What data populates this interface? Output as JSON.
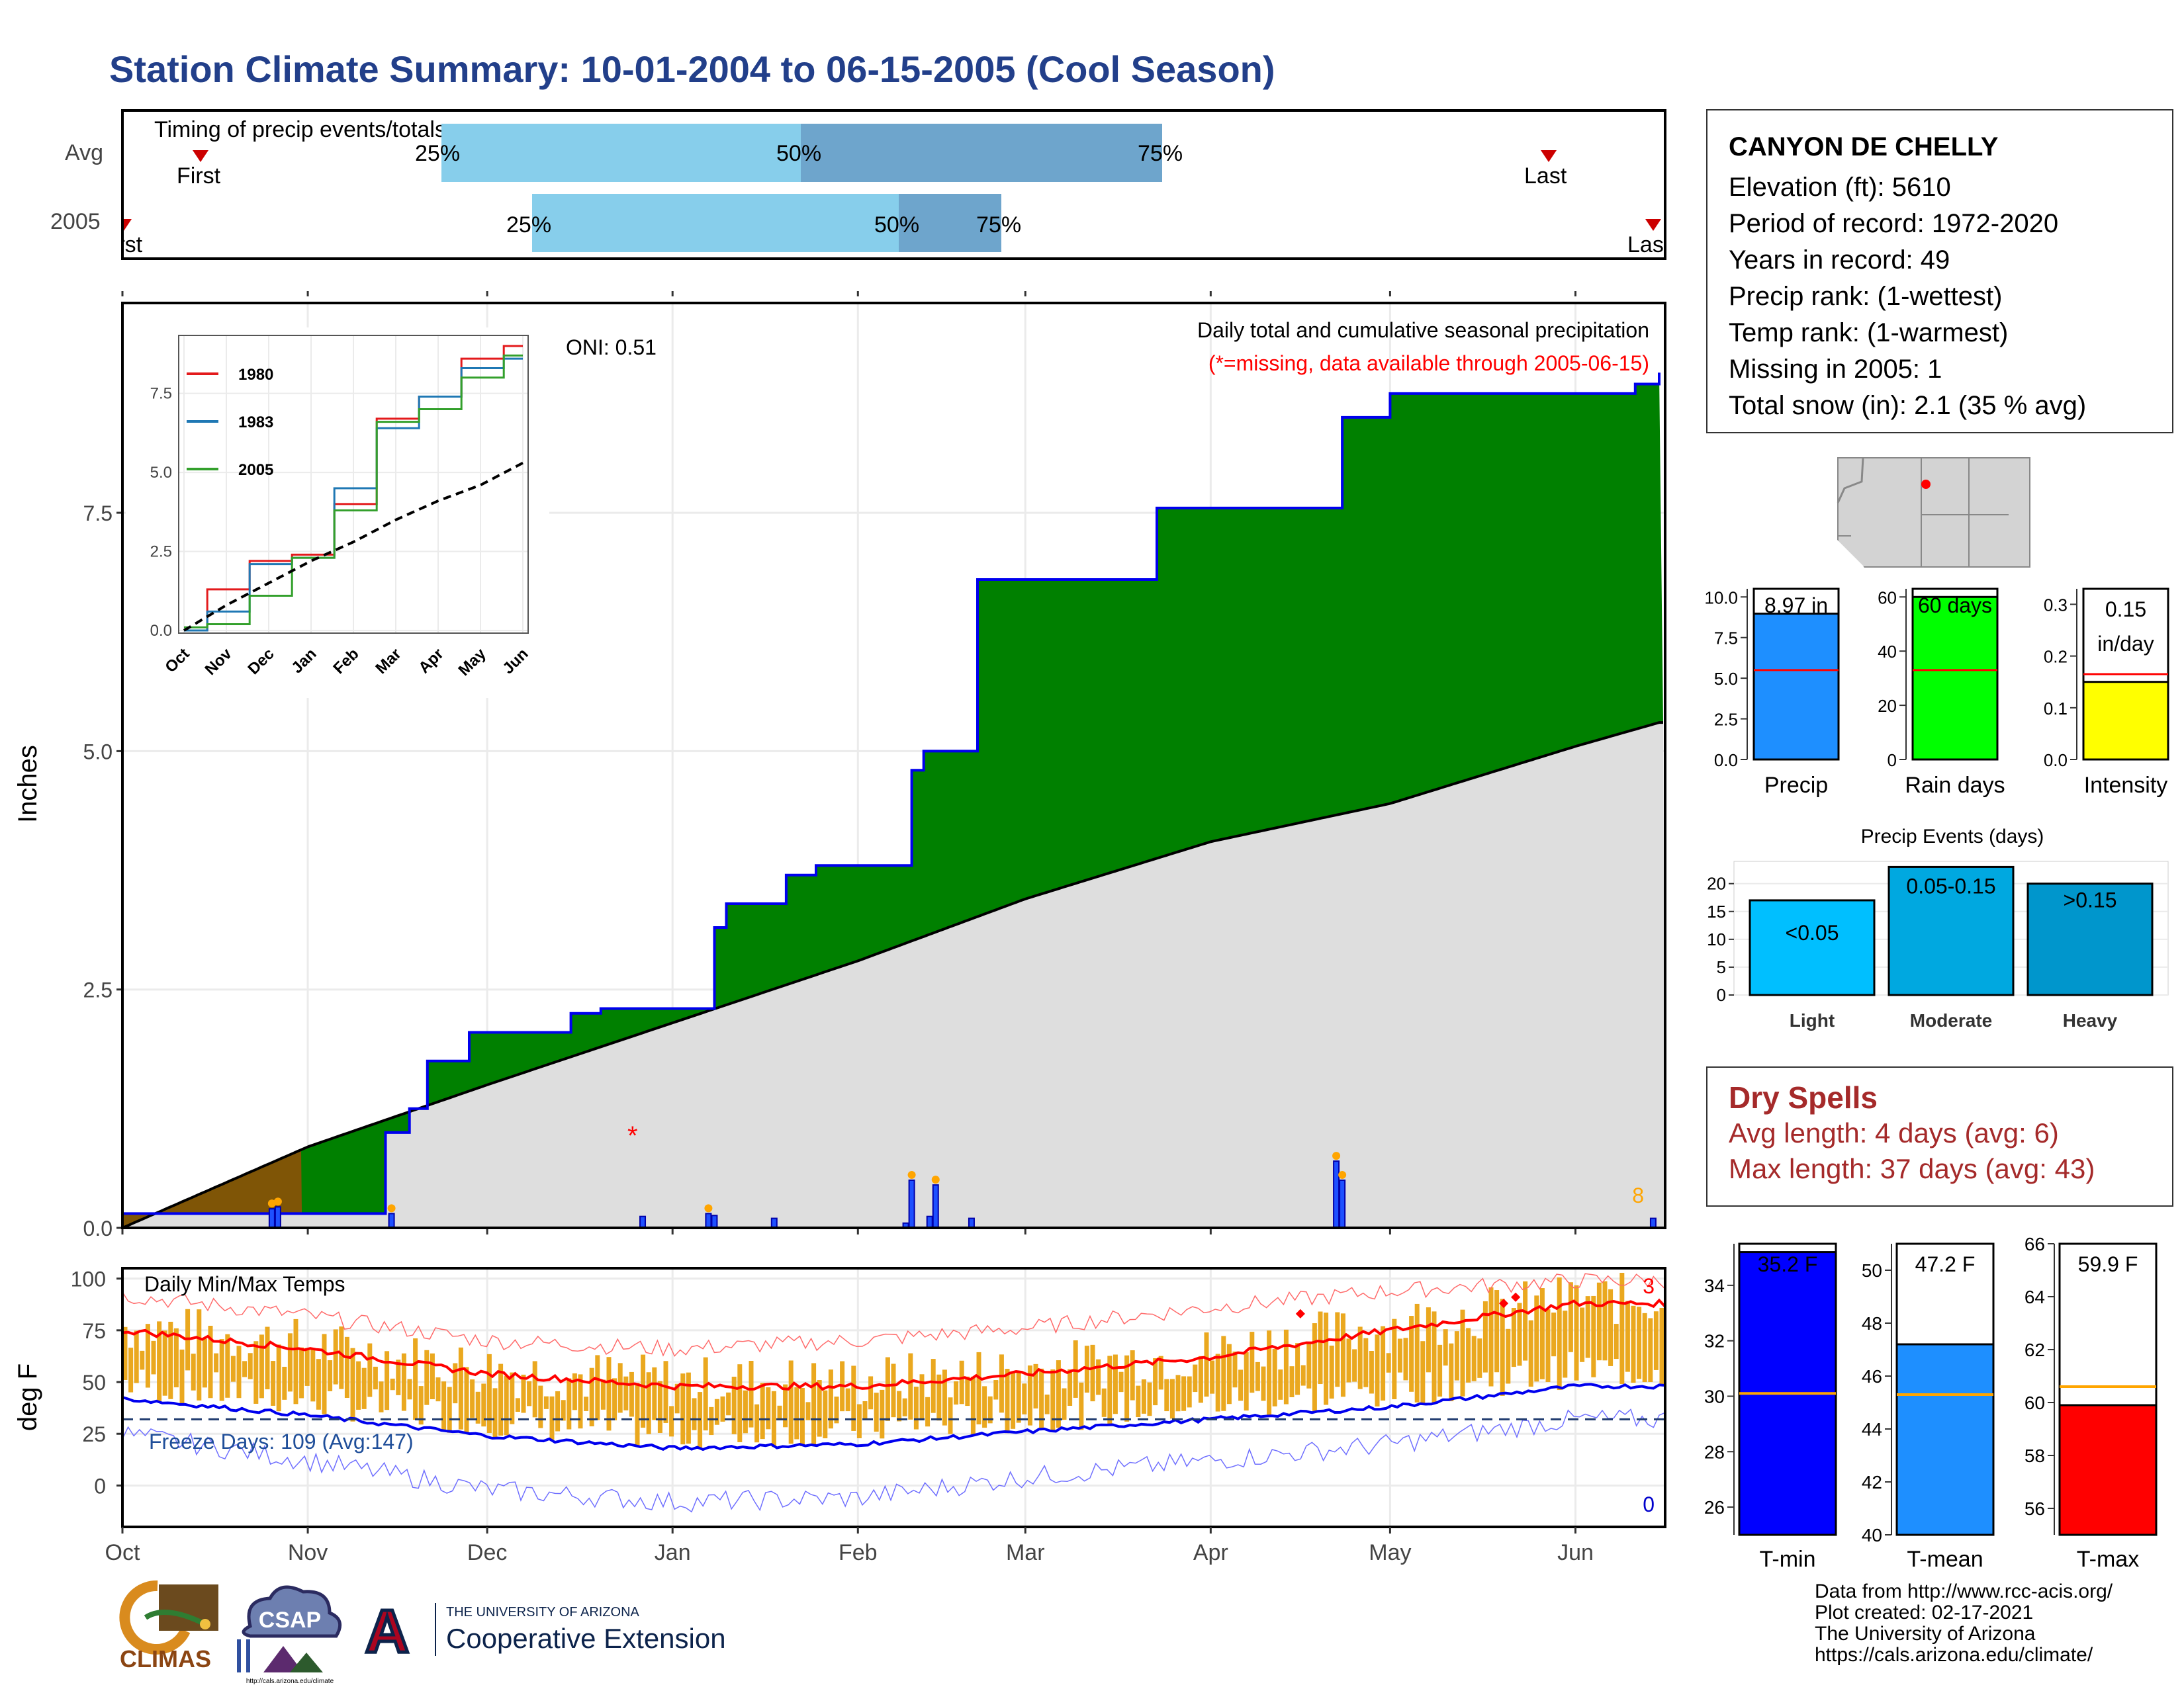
{
  "title": "Station Climate Summary: 10-01-2004 to 06-15-2005 (Cool Season)",
  "timing": {
    "label": "Timing of precip events/totals",
    "rows": [
      "Avg",
      "2005"
    ],
    "avg": {
      "first": "First",
      "p25": "25%",
      "p50": "50%",
      "p75": "75%",
      "last": "Last"
    },
    "y2005": {
      "first": "First",
      "p25": "25%",
      "p50": "50%",
      "p75": "75%",
      "last": "Last"
    }
  },
  "station": {
    "name": "CANYON DE CHELLY",
    "lines": [
      "Elevation (ft): 5610",
      "Period of record: 1972-2020",
      "Years in record: 49",
      "Precip rank:  (1-wettest)",
      "Temp rank:  (1-warmest)",
      "Missing in 2005: 1",
      "Total snow (in): 2.1 (35 % avg)"
    ]
  },
  "main_chart": {
    "ylabel": "Inches",
    "oni": "ONI: 0.51",
    "caption": "Daily total and cumulative seasonal precipitation",
    "missing_note": "(*=missing, data available through 2005-06-15)",
    "count_label": "8",
    "missing_marker": "*"
  },
  "temp_chart": {
    "ylabel": "deg F",
    "label": "Daily Min/Max Temps",
    "freeze": "Freeze Days: 109 (Avg:147)",
    "count_hi": "3",
    "count_lo": "0"
  },
  "months": [
    "Oct",
    "Nov",
    "Dec",
    "Jan",
    "Feb",
    "Mar",
    "Apr",
    "May",
    "Jun"
  ],
  "inset": {
    "years": [
      "1980",
      "1983",
      "2005"
    ]
  },
  "summary_bars": {
    "precip": {
      "label": "Precip",
      "value_text": "8.97 in"
    },
    "raindays": {
      "label": "Rain days",
      "value_text": "60 days"
    },
    "intensity": {
      "label": "Intensity",
      "value_text": "0.15",
      "unit": "in/day"
    }
  },
  "events": {
    "title": "Precip Events (days)",
    "bars": [
      {
        "label": "Light",
        "text": "<0.05"
      },
      {
        "label": "Moderate",
        "text": "0.05-0.15"
      },
      {
        "label": "Heavy",
        "text": ">0.15"
      }
    ]
  },
  "dry_spells": {
    "title": "Dry Spells",
    "avg": "Avg length: 4 days (avg: 6)",
    "max": "Max length: 37 days (avg: 43)"
  },
  "temp_bars": {
    "tmin": {
      "label": "T-min",
      "value_text": "35.2 F"
    },
    "tmean": {
      "label": "T-mean",
      "value_text": "47.2 F"
    },
    "tmax": {
      "label": "T-max",
      "value_text": "59.9 F"
    }
  },
  "credits": [
    "Data from http://www.rcc-acis.org/",
    "Plot created: 02-17-2021",
    "The University of Arizona",
    "https://cals.arizona.edu/climate/"
  ],
  "logos": {
    "climas": "CLIMAS",
    "csap": "CSAP",
    "csap_url": "http://cals.arizona.edu/climate",
    "ua_small": "THE UNIVERSITY OF ARIZONA",
    "ua_big": "Cooperative Extension",
    "ua_mark": "A"
  },
  "chart_data": [
    {
      "type": "bar",
      "title": "Timing of precip events/totals",
      "categories": [
        "Avg",
        "2005"
      ],
      "series": [
        {
          "name": "25%",
          "values": [
            "2004-11-25",
            "2004-12-09"
          ]
        },
        {
          "name": "50%",
          "values": [
            "2005-01-22",
            "2005-02-06"
          ]
        },
        {
          "name": "75%",
          "values": [
            "2005-03-20",
            "2005-02-23"
          ]
        },
        {
          "name": "First",
          "values": [
            "2004-10-13",
            "2004-10-01"
          ]
        },
        {
          "name": "Last",
          "values": [
            "2005-05-25",
            "2005-06-11"
          ]
        }
      ]
    },
    {
      "type": "area",
      "title": "Daily total and cumulative seasonal precipitation",
      "ylabel": "Inches",
      "ylim": [
        0,
        9.7
      ],
      "x_range": [
        "2004-10-01",
        "2005-06-15"
      ],
      "series": [
        {
          "name": "2005",
          "x": [
            "2004-10-01",
            "2004-10-30",
            "2004-10-31",
            "2004-11-04",
            "2004-11-14",
            "2004-11-18",
            "2004-11-21",
            "2004-11-28",
            "2004-12-03",
            "2004-12-15",
            "2004-12-20",
            "2005-01-08",
            "2005-01-10",
            "2005-01-20",
            "2005-01-25",
            "2005-02-10",
            "2005-02-12",
            "2005-02-21",
            "2005-02-22",
            "2005-03-23",
            "2005-04-23",
            "2005-05-01",
            "2005-06-11",
            "2005-06-15"
          ],
          "y": [
            0.15,
            0.15,
            0.15,
            0.15,
            1.0,
            1.25,
            1.75,
            2.05,
            2.05,
            2.25,
            2.3,
            3.15,
            3.4,
            3.7,
            3.8,
            4.8,
            5.0,
            6.8,
            6.8,
            7.55,
            8.5,
            8.75,
            8.85,
            8.97
          ]
        },
        {
          "name": "Avg",
          "x": [
            "2004-10-01",
            "2004-11-01",
            "2004-12-01",
            "2005-01-01",
            "2005-02-01",
            "2005-03-01",
            "2005-04-01",
            "2005-05-01",
            "2005-06-01",
            "2005-06-15"
          ],
          "y": [
            0.0,
            0.85,
            1.5,
            2.15,
            2.8,
            3.45,
            4.05,
            4.45,
            5.05,
            5.3
          ]
        }
      ],
      "daily_precip": {
        "x": [
          "2004-10-26",
          "2004-10-27",
          "2004-11-15",
          "2004-12-27",
          "2005-01-07",
          "2005-01-08",
          "2005-01-18",
          "2005-02-09",
          "2005-02-10",
          "2005-02-13",
          "2005-02-14",
          "2005-02-20",
          "2005-04-22",
          "2005-04-23",
          "2005-06-14"
        ],
        "y": [
          0.2,
          0.22,
          0.15,
          0.12,
          0.15,
          0.13,
          0.1,
          0.05,
          0.5,
          0.12,
          0.45,
          0.1,
          0.7,
          0.5,
          0.1
        ]
      },
      "oni": 0.51
    },
    {
      "type": "line",
      "title": "Inset cumulative precipitation",
      "x": [
        "Oct",
        "Nov",
        "Dec",
        "Jan",
        "Feb",
        "Mar",
        "Apr",
        "May",
        "Jun"
      ],
      "ylim": [
        0,
        9.0
      ],
      "series": [
        {
          "name": "1980",
          "values": [
            0.0,
            1.3,
            2.2,
            2.4,
            4.0,
            6.7,
            7.4,
            8.6,
            9.0
          ]
        },
        {
          "name": "1983",
          "values": [
            0.0,
            0.6,
            2.1,
            2.3,
            4.5,
            6.4,
            7.4,
            8.3,
            8.6
          ]
        },
        {
          "name": "2005",
          "values": [
            0.1,
            0.2,
            1.1,
            2.3,
            3.8,
            6.6,
            7.0,
            8.0,
            8.7
          ]
        },
        {
          "name": "Avg",
          "values": [
            0.0,
            0.8,
            1.5,
            2.2,
            2.8,
            3.5,
            4.1,
            4.6,
            5.3
          ]
        }
      ]
    },
    {
      "type": "line",
      "title": "Daily Min/Max Temps",
      "ylabel": "deg F",
      "ylim": [
        -20,
        105
      ],
      "x": [
        "Oct",
        "Nov",
        "Dec",
        "Jan",
        "Feb",
        "Mar",
        "Apr",
        "May",
        "Jun"
      ],
      "series": [
        {
          "name": "Avg max",
          "values": [
            75,
            66,
            54,
            48,
            48,
            54,
            62,
            75,
            88
          ]
        },
        {
          "name": "Avg min",
          "values": [
            42,
            34,
            24,
            18,
            20,
            26,
            32,
            38,
            48
          ]
        },
        {
          "name": "Record max",
          "values": [
            92,
            82,
            70,
            66,
            70,
            76,
            86,
            94,
            99
          ]
        },
        {
          "name": "Record min",
          "values": [
            25,
            12,
            -2,
            -8,
            -6,
            4,
            12,
            20,
            32
          ]
        }
      ],
      "freeze_line": 32
    },
    {
      "type": "bar",
      "title": "Precip",
      "categories": [
        "Precip"
      ],
      "values": [
        8.97
      ],
      "avg": 5.5,
      "ylim": [
        0,
        10.5
      ]
    },
    {
      "type": "bar",
      "title": "Rain days",
      "categories": [
        "Rain days"
      ],
      "values": [
        60
      ],
      "avg": 33,
      "ylim": [
        0,
        63
      ]
    },
    {
      "type": "bar",
      "title": "Intensity",
      "categories": [
        "Intensity"
      ],
      "values": [
        0.15
      ],
      "avg": 0.165,
      "ylim": [
        0,
        0.33
      ]
    },
    {
      "type": "bar",
      "title": "Precip Events (days)",
      "categories": [
        "Light",
        "Moderate",
        "Heavy"
      ],
      "values": [
        17,
        23,
        20
      ],
      "ylim": [
        0,
        24
      ]
    },
    {
      "type": "bar",
      "title": "T-min",
      "categories": [
        "T-min"
      ],
      "values": [
        35.2
      ],
      "avg": 30.1,
      "ylim": [
        25,
        35.5
      ]
    },
    {
      "type": "bar",
      "title": "T-mean",
      "categories": [
        "T-mean"
      ],
      "values": [
        47.2
      ],
      "avg": 45.3,
      "ylim": [
        40,
        51
      ]
    },
    {
      "type": "bar",
      "title": "T-max",
      "categories": [
        "T-max"
      ],
      "values": [
        59.9
      ],
      "avg": 60.6,
      "ylim": [
        55,
        66
      ]
    }
  ]
}
